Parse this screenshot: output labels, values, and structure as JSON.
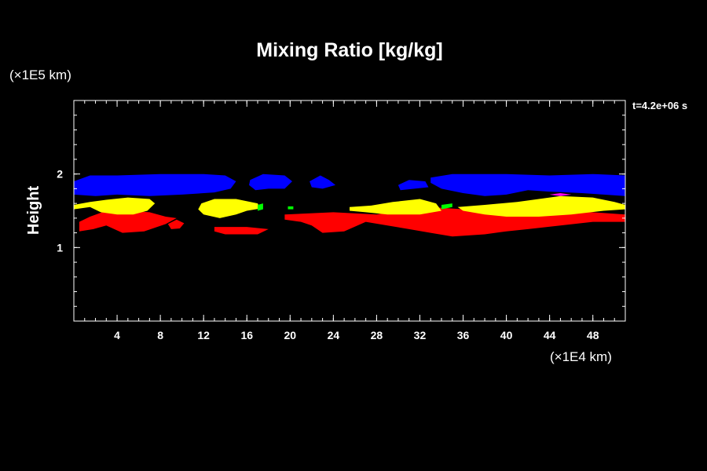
{
  "chart_data": {
    "type": "heatmap",
    "title": "Mixing Ratio [kg/kg]",
    "ylabel": "Height",
    "y_unit_label": "(×1E5 km)",
    "x_unit_label": "(×1E4 km)",
    "time_label": "t=4.2e+06 s",
    "xlim": [
      0,
      51
    ],
    "ylim": [
      0,
      3
    ],
    "x_ticks": [
      4,
      8,
      12,
      16,
      20,
      24,
      28,
      32,
      36,
      40,
      44,
      48
    ],
    "y_ticks": [
      1,
      2
    ],
    "x_minor_step": 1,
    "y_minor_step": 0.2,
    "grid": false,
    "colors": {
      "background": "#000000",
      "axes": "#ffffff",
      "blue": "#0000ff",
      "yellow": "#ffff00",
      "green": "#00ff00",
      "red": "#ff0000",
      "magenta": "#ff00ff"
    },
    "regions": [
      {
        "level": "blue",
        "polygon": [
          [
            0,
            1.9
          ],
          [
            1.5,
            1.98
          ],
          [
            4,
            1.98
          ],
          [
            8,
            2.0
          ],
          [
            12,
            2.0
          ],
          [
            14,
            1.98
          ],
          [
            15,
            1.9
          ],
          [
            14.5,
            1.8
          ],
          [
            13,
            1.75
          ],
          [
            10,
            1.72
          ],
          [
            7,
            1.7
          ],
          [
            4,
            1.72
          ],
          [
            2,
            1.7
          ],
          [
            0,
            1.72
          ]
        ]
      },
      {
        "level": "blue",
        "polygon": [
          [
            16.3,
            1.92
          ],
          [
            17.5,
            2.0
          ],
          [
            19.5,
            1.98
          ],
          [
            20.2,
            1.9
          ],
          [
            19.5,
            1.8
          ],
          [
            18,
            1.8
          ],
          [
            16.8,
            1.78
          ],
          [
            16.2,
            1.85
          ]
        ]
      },
      {
        "level": "blue",
        "polygon": [
          [
            21.8,
            1.9
          ],
          [
            22.8,
            1.98
          ],
          [
            23.6,
            1.92
          ],
          [
            24.2,
            1.85
          ],
          [
            23,
            1.8
          ],
          [
            22,
            1.82
          ]
        ]
      },
      {
        "level": "blue",
        "polygon": [
          [
            30,
            1.85
          ],
          [
            31,
            1.92
          ],
          [
            32.5,
            1.9
          ],
          [
            32.8,
            1.82
          ],
          [
            31.5,
            1.8
          ],
          [
            30.2,
            1.78
          ]
        ]
      },
      {
        "level": "blue",
        "polygon": [
          [
            33,
            1.95
          ],
          [
            35,
            2.0
          ],
          [
            40,
            2.0
          ],
          [
            44,
            1.98
          ],
          [
            48,
            2.0
          ],
          [
            51,
            1.98
          ],
          [
            51,
            1.7
          ],
          [
            49,
            1.72
          ],
          [
            47,
            1.74
          ],
          [
            44,
            1.76
          ],
          [
            42,
            1.78
          ],
          [
            40,
            1.72
          ],
          [
            38,
            1.7
          ],
          [
            36,
            1.74
          ],
          [
            34,
            1.8
          ],
          [
            33,
            1.88
          ]
        ]
      },
      {
        "level": "red",
        "polygon": [
          [
            0.5,
            1.35
          ],
          [
            1.5,
            1.42
          ],
          [
            3,
            1.5
          ],
          [
            5,
            1.5
          ],
          [
            7,
            1.48
          ],
          [
            8.5,
            1.42
          ],
          [
            9.5,
            1.4
          ],
          [
            8.5,
            1.32
          ],
          [
            6.5,
            1.22
          ],
          [
            4.5,
            1.2
          ],
          [
            3,
            1.3
          ],
          [
            1.8,
            1.25
          ],
          [
            0.5,
            1.22
          ]
        ]
      },
      {
        "level": "red",
        "polygon": [
          [
            8.7,
            1.32
          ],
          [
            9.5,
            1.38
          ],
          [
            10.2,
            1.33
          ],
          [
            9.8,
            1.26
          ],
          [
            9,
            1.25
          ]
        ]
      },
      {
        "level": "red",
        "polygon": [
          [
            13,
            1.28
          ],
          [
            16,
            1.28
          ],
          [
            18,
            1.25
          ],
          [
            17,
            1.18
          ],
          [
            14,
            1.18
          ],
          [
            13,
            1.22
          ]
        ]
      },
      {
        "level": "red",
        "polygon": [
          [
            19.5,
            1.45
          ],
          [
            24,
            1.48
          ],
          [
            28,
            1.45
          ],
          [
            30,
            1.5
          ],
          [
            33,
            1.55
          ],
          [
            36,
            1.52
          ],
          [
            40,
            1.52
          ],
          [
            44,
            1.5
          ],
          [
            48,
            1.48
          ],
          [
            51,
            1.45
          ],
          [
            51,
            1.35
          ],
          [
            48,
            1.35
          ],
          [
            45,
            1.3
          ],
          [
            42,
            1.25
          ],
          [
            40,
            1.22
          ],
          [
            38,
            1.18
          ],
          [
            35,
            1.15
          ],
          [
            33,
            1.2
          ],
          [
            31,
            1.25
          ],
          [
            29,
            1.3
          ],
          [
            27,
            1.35
          ],
          [
            25,
            1.22
          ],
          [
            23,
            1.2
          ],
          [
            22,
            1.3
          ],
          [
            21,
            1.35
          ],
          [
            19.5,
            1.38
          ]
        ]
      },
      {
        "level": "yellow",
        "polygon": [
          [
            0,
            1.58
          ],
          [
            1.5,
            1.62
          ],
          [
            3,
            1.65
          ],
          [
            5,
            1.68
          ],
          [
            7,
            1.66
          ],
          [
            7.5,
            1.6
          ],
          [
            6.8,
            1.5
          ],
          [
            5.5,
            1.45
          ],
          [
            4,
            1.45
          ],
          [
            2.5,
            1.48
          ],
          [
            1.5,
            1.55
          ],
          [
            0,
            1.52
          ]
        ]
      },
      {
        "level": "yellow",
        "polygon": [
          [
            11.8,
            1.6
          ],
          [
            13,
            1.66
          ],
          [
            15,
            1.66
          ],
          [
            17,
            1.6
          ],
          [
            17.2,
            1.53
          ],
          [
            16,
            1.5
          ],
          [
            15,
            1.45
          ],
          [
            13.5,
            1.4
          ],
          [
            12,
            1.45
          ],
          [
            11.5,
            1.52
          ]
        ]
      },
      {
        "level": "yellow",
        "polygon": [
          [
            25.5,
            1.55
          ],
          [
            27.5,
            1.57
          ],
          [
            29.5,
            1.62
          ],
          [
            32,
            1.66
          ],
          [
            33.5,
            1.6
          ],
          [
            34,
            1.5
          ],
          [
            32,
            1.45
          ],
          [
            29,
            1.45
          ],
          [
            27,
            1.48
          ],
          [
            25.5,
            1.5
          ]
        ]
      },
      {
        "level": "yellow",
        "polygon": [
          [
            35.5,
            1.55
          ],
          [
            38,
            1.58
          ],
          [
            41,
            1.62
          ],
          [
            43,
            1.66
          ],
          [
            45,
            1.7
          ],
          [
            48,
            1.68
          ],
          [
            50,
            1.62
          ],
          [
            51,
            1.58
          ],
          [
            51,
            1.52
          ],
          [
            49,
            1.5
          ],
          [
            46,
            1.45
          ],
          [
            43,
            1.42
          ],
          [
            40,
            1.42
          ],
          [
            38,
            1.45
          ],
          [
            36,
            1.5
          ]
        ]
      },
      {
        "level": "green",
        "polygon": [
          [
            17,
            1.58
          ],
          [
            17.5,
            1.6
          ],
          [
            17.5,
            1.52
          ],
          [
            17,
            1.5
          ]
        ]
      },
      {
        "level": "green",
        "polygon": [
          [
            19.8,
            1.56
          ],
          [
            20.3,
            1.56
          ],
          [
            20.3,
            1.52
          ],
          [
            19.8,
            1.52
          ]
        ]
      },
      {
        "level": "green",
        "polygon": [
          [
            34,
            1.58
          ],
          [
            35,
            1.6
          ],
          [
            35,
            1.55
          ],
          [
            34,
            1.52
          ]
        ]
      },
      {
        "level": "magenta",
        "polygon": [
          [
            44,
            1.72
          ],
          [
            45,
            1.74
          ],
          [
            46,
            1.72
          ],
          [
            45,
            1.7
          ]
        ]
      }
    ]
  }
}
